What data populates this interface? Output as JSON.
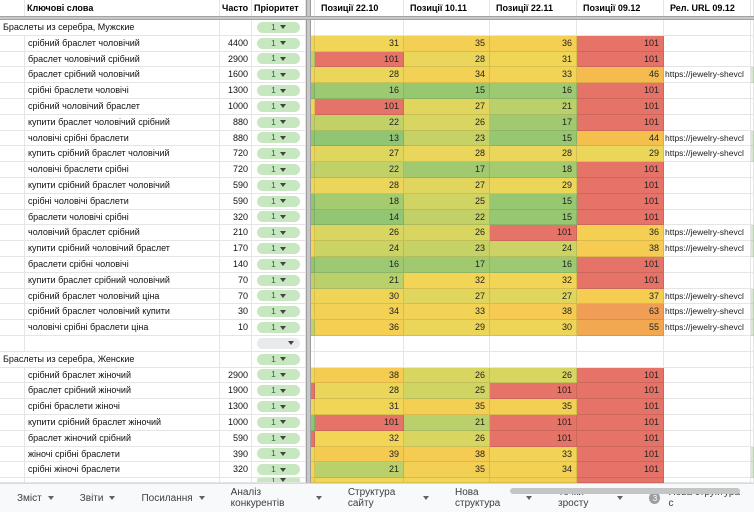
{
  "table": {
    "columns": [
      {
        "label": "Ключові слова"
      },
      {
        "label": "Часто"
      },
      {
        "label": "Пріоритет"
      },
      {
        "label": "Позиції 22.10"
      },
      {
        "label": "Позиції 10.11"
      },
      {
        "label": "Позиції 22.11"
      },
      {
        "label": "Позиції 09.12"
      },
      {
        "label": "Рел. URL 09.12"
      }
    ],
    "url_display_text": "https://jewelry-shevcl",
    "groups": [
      {
        "title": "Браслеты из серебра, Мужские",
        "priority": "1",
        "rows": [
          {
            "keyword": "срібний браслет чоловічий",
            "frequency": "4400",
            "priority": "1",
            "positions": [
              31,
              35,
              36,
              101
            ],
            "has_url": false,
            "left_sliver": "#F1D557"
          },
          {
            "keyword": "браслет чоловічий срібний",
            "frequency": "2900",
            "priority": "1",
            "positions": [
              101,
              28,
              31,
              101
            ],
            "has_url": false,
            "left_sliver": "#C1D168"
          },
          {
            "keyword": "браслет срібний чоловічий",
            "frequency": "1600",
            "priority": "1",
            "positions": [
              28,
              34,
              33,
              46
            ],
            "has_url": true,
            "left_sliver": "#F1D557"
          },
          {
            "keyword": "срібні браслети чоловічі",
            "frequency": "1300",
            "priority": "1",
            "positions": [
              16,
              15,
              16,
              101
            ],
            "has_url": false,
            "left_sliver": "#8FC573"
          },
          {
            "keyword": "срібний чоловічий браслет",
            "frequency": "1000",
            "priority": "1",
            "positions": [
              101,
              27,
              21,
              101
            ],
            "has_url": false,
            "left_sliver": "#F1D557"
          },
          {
            "keyword": "купити браслет чоловічий срібний",
            "frequency": "880",
            "priority": "1",
            "positions": [
              22,
              26,
              17,
              101
            ],
            "has_url": false,
            "left_sliver": "#C1D168"
          },
          {
            "keyword": "чоловічі срібні браслети",
            "frequency": "880",
            "priority": "1",
            "positions": [
              13,
              23,
              15,
              44
            ],
            "has_url": true,
            "left_sliver": "#8FC573"
          },
          {
            "keyword": "купить срібний браслет чоловічий",
            "frequency": "720",
            "priority": "1",
            "positions": [
              27,
              28,
              28,
              29
            ],
            "has_url": true,
            "left_sliver": "#F1D557"
          },
          {
            "keyword": "чоловічі браслети срібні",
            "frequency": "720",
            "priority": "1",
            "positions": [
              22,
              17,
              18,
              101
            ],
            "has_url": false,
            "left_sliver": "#C1D168"
          },
          {
            "keyword": "купити срібний браслет чоловічий",
            "frequency": "590",
            "priority": "1",
            "positions": [
              28,
              27,
              29,
              101
            ],
            "has_url": false,
            "left_sliver": "#F1D557"
          },
          {
            "keyword": "срібні чоловічі браслети",
            "frequency": "590",
            "priority": "1",
            "positions": [
              18,
              25,
              15,
              101
            ],
            "has_url": false,
            "left_sliver": "#8FC573"
          },
          {
            "keyword": "браслети чоловічі срібні",
            "frequency": "320",
            "priority": "1",
            "positions": [
              14,
              22,
              15,
              101
            ],
            "has_url": false,
            "left_sliver": "#8FC573"
          },
          {
            "keyword": "чоловічий браслет срібний",
            "frequency": "210",
            "priority": "1",
            "positions": [
              26,
              26,
              101,
              36
            ],
            "has_url": true,
            "left_sliver": "#F1D557"
          },
          {
            "keyword": "купити срібний чоловічий браслет",
            "frequency": "170",
            "priority": "1",
            "positions": [
              24,
              23,
              24,
              38
            ],
            "has_url": true,
            "left_sliver": "#F1D557"
          },
          {
            "keyword": "браслети срібні чоловічі",
            "frequency": "140",
            "priority": "1",
            "positions": [
              16,
              17,
              16,
              101
            ],
            "has_url": false,
            "left_sliver": "#8FC573"
          },
          {
            "keyword": "купити браслет срібний чоловічий",
            "frequency": "70",
            "priority": "1",
            "positions": [
              21,
              32,
              32,
              101
            ],
            "has_url": false,
            "left_sliver": "#C1D168"
          },
          {
            "keyword": "срібний браслет чоловічий ціна",
            "frequency": "70",
            "priority": "1",
            "positions": [
              30,
              27,
              27,
              37
            ],
            "has_url": true,
            "left_sliver": "#F1D557"
          },
          {
            "keyword": "срібний браслет чоловічий купити",
            "frequency": "30",
            "priority": "1",
            "positions": [
              34,
              33,
              38,
              63
            ],
            "has_url": true,
            "left_sliver": "#F1D557"
          },
          {
            "keyword": "чоловічі срібні браслети ціна",
            "frequency": "10",
            "priority": "1",
            "positions": [
              36,
              29,
              30,
              55
            ],
            "has_url": true,
            "left_sliver": "#C1D168"
          }
        ]
      },
      {
        "spacer": true
      },
      {
        "title": "Браслеты из серебра, Женские",
        "priority": "1",
        "rows": [
          {
            "keyword": "срібний браслет жіночий",
            "frequency": "2900",
            "priority": "1",
            "positions": [
              38,
              26,
              26,
              101
            ],
            "has_url": false,
            "left_sliver": "#F1D557"
          },
          {
            "keyword": "браслет срібний жіночий",
            "frequency": "1900",
            "priority": "1",
            "positions": [
              28,
              25,
              101,
              101
            ],
            "has_url": false,
            "left_sliver": "#E57368"
          },
          {
            "keyword": "срібні браслети жіночі",
            "frequency": "1300",
            "priority": "1",
            "positions": [
              31,
              35,
              35,
              101
            ],
            "has_url": false,
            "left_sliver": "#F1D557"
          },
          {
            "keyword": "купити срібний браслет жіночий",
            "frequency": "1000",
            "priority": "1",
            "positions": [
              101,
              21,
              101,
              101
            ],
            "has_url": false,
            "left_sliver": "#8FC573"
          },
          {
            "keyword": "браслет жіночий срібний",
            "frequency": "590",
            "priority": "1",
            "positions": [
              32,
              26,
              101,
              101
            ],
            "has_url": false,
            "left_sliver": "#E57368"
          },
          {
            "keyword": "жіночі срібні браслети",
            "frequency": "390",
            "priority": "1",
            "positions": [
              39,
              38,
              33,
              101
            ],
            "has_url": false,
            "left_sliver": "#F1D557",
            "right_sliver": true
          },
          {
            "keyword": "срібні жіночі браслети",
            "frequency": "320",
            "priority": "1",
            "positions": [
              21,
              35,
              34,
              101
            ],
            "has_url": false,
            "left_sliver": "#F1D557",
            "right_sliver": true
          }
        ]
      }
    ],
    "partial_bottom_row": {
      "priority": "1",
      "cell_colors": [
        "#F1D557",
        "#F1D557",
        "#F4CF52",
        "#E57368"
      ],
      "left_sliver": "#F1D557"
    }
  },
  "colors": {
    "scale_stops": [
      [
        13,
        "#8FC573"
      ],
      [
        18,
        "#A5CB6F"
      ],
      [
        22,
        "#C1D168"
      ],
      [
        25,
        "#CFD462"
      ],
      [
        28,
        "#E9D65B"
      ],
      [
        31,
        "#F1D557"
      ],
      [
        36,
        "#F4CF52"
      ],
      [
        40,
        "#F5C84F"
      ],
      [
        46,
        "#F5BB4E"
      ],
      [
        55,
        "#F2A851"
      ],
      [
        65,
        "#EF9C56"
      ],
      [
        101,
        "#E57368"
      ]
    ],
    "pill_green_bg": "#C7E7C0",
    "pill_gray_bg": "#E8EAED",
    "frozen_divider": "#C7C9C8",
    "right_sliver_green": "#D7E8CE",
    "red": "#E57368"
  },
  "footer": {
    "tabs": [
      {
        "label": "Зміст"
      },
      {
        "label": "Звіти"
      },
      {
        "label": "Посилання"
      },
      {
        "label": "Аналіз конкурентів"
      },
      {
        "label": "Структура сайту"
      },
      {
        "label": "Нова структура"
      },
      {
        "label": "Точки зросту"
      },
      {
        "label": "Нова структура с",
        "badge": "3",
        "no_caret": true
      }
    ]
  }
}
